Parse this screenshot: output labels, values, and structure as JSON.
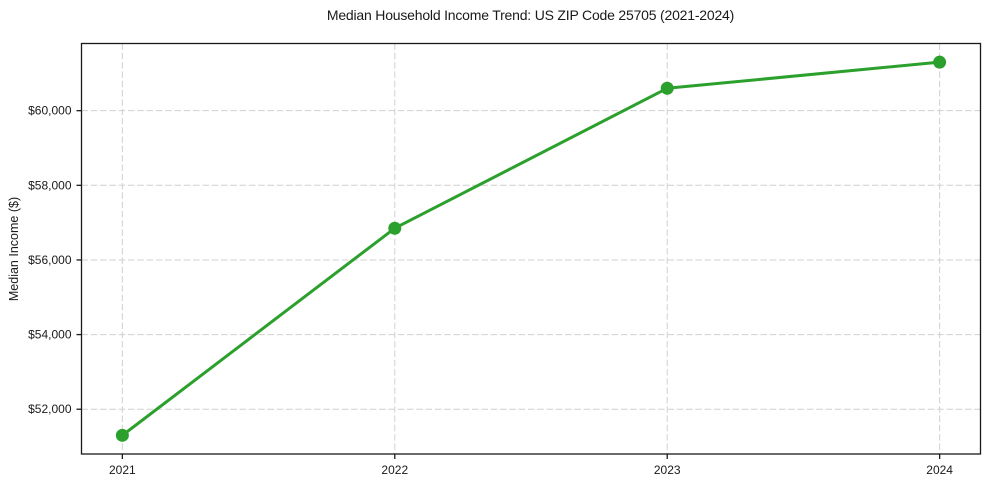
{
  "chart_data": {
    "type": "line",
    "title": "Median Household Income Trend: US ZIP Code 25705 (2021-2024)",
    "xlabel": "",
    "ylabel": "Median Income ($)",
    "x": [
      2021,
      2022,
      2023,
      2024
    ],
    "values": [
      51300,
      56850,
      60600,
      61300
    ],
    "x_tick_labels": [
      "2021",
      "2022",
      "2023",
      "2024"
    ],
    "y_ticks": [
      52000,
      54000,
      56000,
      58000,
      60000
    ],
    "y_tick_labels": [
      "$52,000",
      "$54,000",
      "$56,000",
      "$58,000",
      "$60,000"
    ],
    "xlim": [
      2020.85,
      2024.15
    ],
    "ylim": [
      50800,
      61800
    ],
    "grid": true,
    "legend": "none",
    "line_color": "#2ca02c",
    "marker": "circle",
    "grid_color": "#d0d0d0",
    "frame_color": "#1a1a1a",
    "text_color": "#1a1a1a",
    "background_color": "#ffffff"
  }
}
